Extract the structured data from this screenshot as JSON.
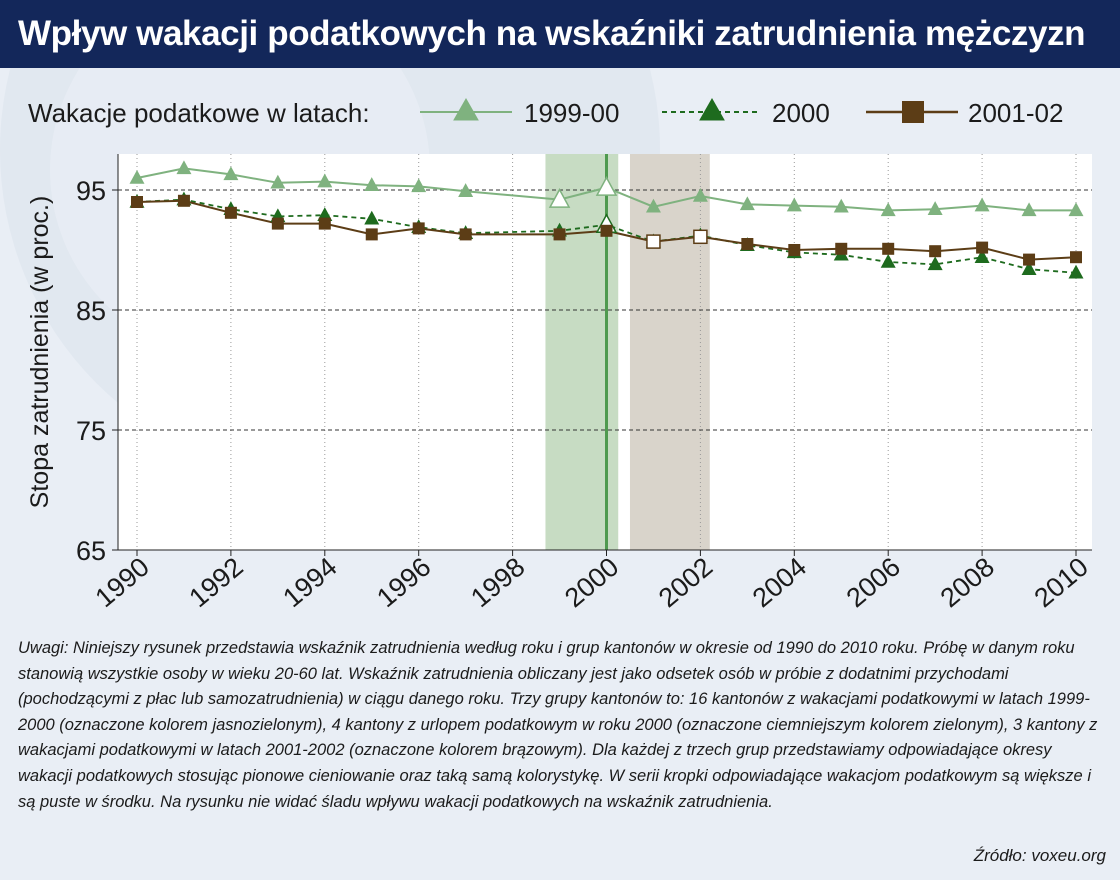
{
  "title": "Wpływ wakacji podatkowych na wskaźniki zatrudnienia mężczyzn",
  "notes": "Uwagi: Niniejszy rysunek przedstawia wskaźnik zatrudnienia według roku i grup kantonów w okresie od 1990 do 2010 roku. Próbę w danym roku stanowią wszystkie osoby w wieku 20-60 lat. Wskaźnik zatrudnienia obliczany jest jako odsetek osób w próbie z dodatnimi przychodami (pochodzącymi z płac lub samozatrudnienia) w ciągu danego roku. Trzy grupy kantonów to: 16 kantonów z wakacjami podatkowymi w latach 1999-2000 (oznaczone kolorem jasnozielonym), 4 kantony z urlopem podatkowym w roku 2000 (oznaczone ciemniejszym kolorem zielonym), 3 kantony z wakacjami podatkowymi w latach 2001-2002 (oznaczone kolorem brązowym). Dla każdej z trzech grup przedstawiamy odpowiadające okresy wakacji podatkowych stosując pionowe cieniowanie oraz taką samą kolorystykę. W serii kropki odpowiadające wakacjom podatkowym są większe i są puste w środku. Na rysunku nie widać śladu wpływu wakacji podatkowych na wskaźnik zatrudnienia.",
  "source": "Źródło: voxeu.org",
  "colors": {
    "title_bg": "#13275a",
    "light_green": "#7fb27f",
    "dark_green": "#1e6b1e",
    "brown": "#5c3d16",
    "green_shade": "#c7dcc3",
    "brown_shade": "#d9d4cb",
    "vline": "#4f9a4f"
  },
  "chart_data": {
    "type": "line",
    "legend_title": "Wakacje podatkowe w latach:",
    "legend_position": "top",
    "ylabel": "Stopa zatrudnienia (w proc.)",
    "xlabel": "",
    "xlim": [
      1990,
      2010
    ],
    "ylim": [
      65,
      98
    ],
    "yticks": [
      65,
      75,
      85,
      95
    ],
    "xticks": [
      1990,
      1992,
      1994,
      1996,
      1998,
      2000,
      2002,
      2004,
      2006,
      2008,
      2010
    ],
    "grid": "horizontal dashed + vertical dotted",
    "x": [
      1990,
      1991,
      1992,
      1993,
      1994,
      1995,
      1996,
      1997,
      1999,
      2000,
      2001,
      2002,
      2003,
      2004,
      2005,
      2006,
      2007,
      2008,
      2009,
      2010
    ],
    "shaded_periods": [
      {
        "from": 1998.7,
        "to": 2000.25,
        "group": "1999-00"
      },
      {
        "from": 2000.5,
        "to": 2002.2,
        "group": "2001-02"
      }
    ],
    "vertical_line": {
      "x": 2000,
      "group": "2000"
    },
    "series": [
      {
        "name": "1999-00",
        "marker": "triangle",
        "line_style": "solid",
        "color": "#7fb27f",
        "values": [
          96.0,
          96.8,
          96.3,
          95.6,
          95.7,
          95.4,
          95.3,
          94.9,
          94.2,
          95.2,
          93.6,
          94.5,
          93.8,
          93.7,
          93.6,
          93.3,
          93.4,
          93.7,
          93.3,
          93.3
        ],
        "hollow_years": [
          1999,
          2000
        ]
      },
      {
        "name": "2000",
        "marker": "triangle",
        "line_style": "dashed",
        "color": "#1e6b1e",
        "values": [
          94.0,
          94.2,
          93.4,
          92.8,
          92.9,
          92.6,
          91.9,
          91.4,
          91.6,
          92.1,
          90.7,
          91.2,
          90.4,
          89.8,
          89.6,
          89.0,
          88.8,
          89.4,
          88.4,
          88.1
        ],
        "hollow_years": [
          2000
        ]
      },
      {
        "name": "2001-02",
        "marker": "square",
        "line_style": "solid",
        "color": "#5c3d16",
        "values": [
          94.0,
          94.1,
          93.1,
          92.2,
          92.2,
          91.3,
          91.8,
          91.3,
          91.3,
          91.6,
          90.7,
          91.1,
          90.5,
          90.0,
          90.1,
          90.1,
          89.9,
          90.2,
          89.2,
          89.4
        ],
        "hollow_years": [
          2001,
          2002
        ]
      }
    ]
  }
}
